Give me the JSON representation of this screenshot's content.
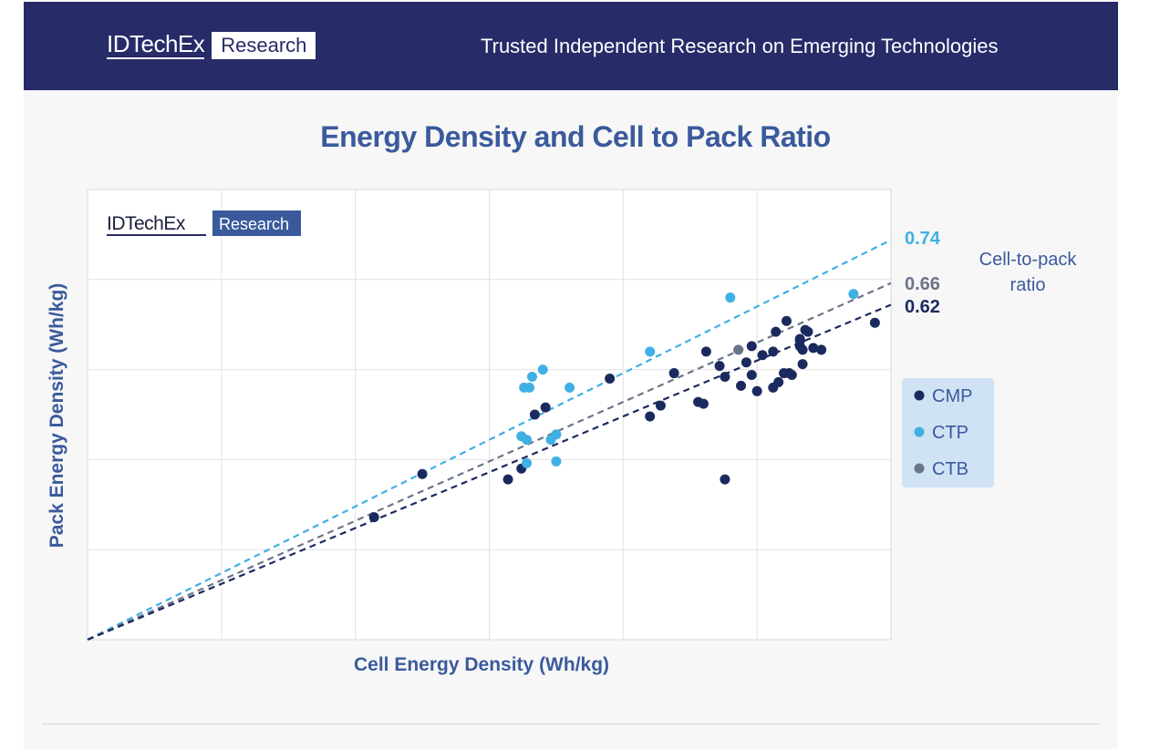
{
  "header": {
    "brand": "IDTechEx",
    "research": "Research",
    "tagline": "Trusted Independent Research on Emerging Technologies"
  },
  "colors": {
    "header_bg": "#272b68",
    "CMP": "#1b2a5e",
    "CTP": "#3fb0e4",
    "CTB": "#6b7588",
    "title": "#3a5a9c"
  },
  "chart_data": {
    "type": "scatter",
    "title": "Energy Density and Cell to Pack Ratio",
    "xlabel": "Cell Energy Density (Wh/kg)",
    "ylabel": "Pack Energy Density (Wh/kg)",
    "xlim": [
      0,
      300
    ],
    "ylim": [
      0,
      250
    ],
    "grid": true,
    "watermark": {
      "brand": "IDTechEx",
      "research": "Research"
    },
    "legend_position": "right",
    "ratio_title": "Cell-to-pack ratio",
    "ratio_lines": [
      {
        "name": "CTP",
        "ratio": 0.74,
        "label": "0.74",
        "color": "#3fb0e4"
      },
      {
        "name": "CTB",
        "ratio": 0.66,
        "label": "0.66",
        "color": "#6b7588"
      },
      {
        "name": "CMP",
        "ratio": 0.62,
        "label": "0.62",
        "color": "#1b2a5e"
      }
    ],
    "series": [
      {
        "name": "CMP",
        "color": "#1b2a5e",
        "points": [
          [
            107,
            68
          ],
          [
            125,
            92
          ],
          [
            157,
            89
          ],
          [
            162,
            95
          ],
          [
            167,
            125
          ],
          [
            171,
            129
          ],
          [
            195,
            145
          ],
          [
            210,
            124
          ],
          [
            214,
            130
          ],
          [
            219,
            148
          ],
          [
            228,
            132
          ],
          [
            230,
            131
          ],
          [
            231,
            160
          ],
          [
            236,
            152
          ],
          [
            238,
            89
          ],
          [
            238,
            146
          ],
          [
            244,
            141
          ],
          [
            246,
            154
          ],
          [
            248,
            163
          ],
          [
            248,
            147
          ],
          [
            250,
            138
          ],
          [
            252,
            158
          ],
          [
            256,
            160
          ],
          [
            256,
            140
          ],
          [
            257,
            171
          ],
          [
            258,
            143
          ],
          [
            260,
            148
          ],
          [
            261,
            177
          ],
          [
            262,
            148
          ],
          [
            263,
            147
          ],
          [
            266,
            167
          ],
          [
            266,
            166
          ],
          [
            266,
            163
          ],
          [
            267,
            161
          ],
          [
            267,
            153
          ],
          [
            268,
            172
          ],
          [
            269,
            171
          ],
          [
            271,
            162
          ],
          [
            274,
            161
          ],
          [
            294,
            176
          ]
        ]
      },
      {
        "name": "CTP",
        "color": "#3fb0e4",
        "points": [
          [
            162,
            113
          ],
          [
            163,
            140
          ],
          [
            164,
            98
          ],
          [
            164,
            111
          ],
          [
            165,
            140
          ],
          [
            166,
            146
          ],
          [
            170,
            150
          ],
          [
            173,
            111
          ],
          [
            175,
            114
          ],
          [
            175,
            99
          ],
          [
            180,
            140
          ],
          [
            210,
            160
          ],
          [
            240,
            190
          ],
          [
            286,
            192
          ]
        ]
      },
      {
        "name": "CTB",
        "color": "#6b7588",
        "points": [
          [
            243,
            161
          ]
        ]
      }
    ]
  }
}
